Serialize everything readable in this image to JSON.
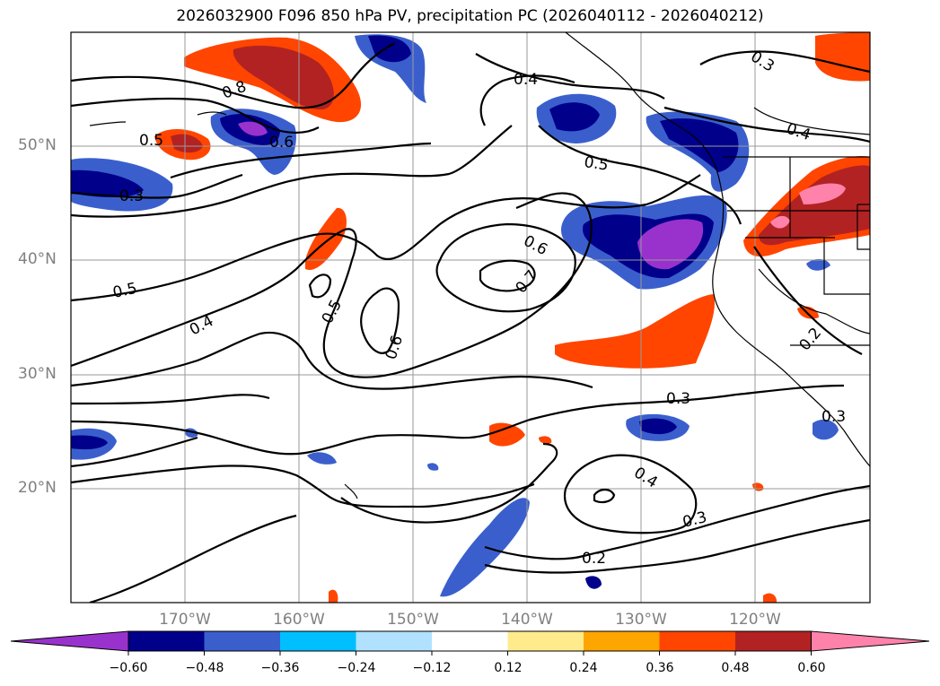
{
  "title": "2026032900 F096 850 hPa PV, precipitation PC (2026040112 - 2026040212)",
  "map": {
    "lat_labels": [
      "50°N",
      "40°N",
      "30°N",
      "20°N"
    ],
    "lon_labels": [
      "170°W",
      "160°W",
      "150°W",
      "140°W",
      "130°W",
      "120°W"
    ],
    "contour_labels": [
      "0.8",
      "0.6",
      "0.5",
      "0.4",
      "0.3",
      "0.5",
      "0.4",
      "0.5",
      "0.6",
      "0.6",
      "0.7",
      "0.5",
      "0.4",
      "0.3",
      "0.3",
      "0.4",
      "0.3",
      "0.2",
      "0.2",
      "0.3"
    ]
  },
  "colorbar": {
    "colors": [
      "#9932cc",
      "#00008b",
      "#3a5fcd",
      "#00bfff",
      "#b0e2ff",
      "#ffffff",
      "#ffeb8c",
      "#ffa500",
      "#ff4500",
      "#b22222",
      "#ff82ab"
    ],
    "tick_labels": [
      "−0.60",
      "−0.48",
      "−0.36",
      "−0.24",
      "−0.12",
      "0.12",
      "0.24",
      "0.36",
      "0.48",
      "0.60"
    ]
  }
}
